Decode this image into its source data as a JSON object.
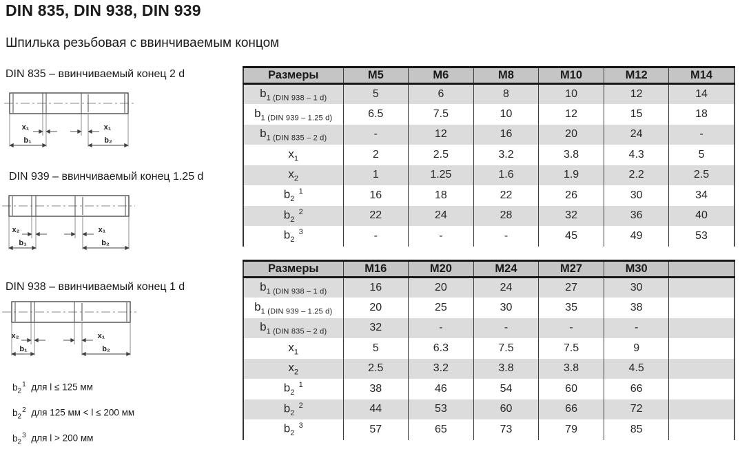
{
  "page": {
    "title": "DIN 835, DIN 938, DIN 939",
    "subtitle": "Шпилька резьбовая с ввинчиваемым концом"
  },
  "drawings": [
    {
      "caption": "DIN 835 – ввинчиваемый конец 2 d",
      "labels": {
        "left_x": "x₁",
        "right_x": "x₁",
        "left_b": "b₁",
        "right_b": "b₂"
      }
    },
    {
      "caption": "DIN 939 – ввинчиваемый конец 1.25 d",
      "labels": {
        "left_x": "x₂",
        "right_x": "x₁",
        "left_b": "b₁",
        "right_b": "b₂"
      }
    },
    {
      "caption": "DIN 938 – ввинчиваемый конец 1 d",
      "labels": {
        "left_x": "x₂",
        "right_x": "x₁",
        "left_b": "b₁",
        "right_b": "b₂"
      }
    }
  ],
  "footnotes": [
    {
      "symbol": {
        "base": "b",
        "sub": "2",
        "sup": "1"
      },
      "text": "для l ≤ 125 мм"
    },
    {
      "symbol": {
        "base": "b",
        "sub": "2",
        "sup": "2"
      },
      "text": "для 125 мм < l ≤ 200 мм"
    },
    {
      "symbol": {
        "base": "b",
        "sub": "2",
        "sup": "3"
      },
      "text": "для l > 200 мм"
    }
  ],
  "tables": [
    {
      "header": [
        "Размеры",
        "M5",
        "M6",
        "M8",
        "M10",
        "M12",
        "M14"
      ],
      "rows": [
        {
          "label": {
            "base": "b",
            "sub": "1 (DIN 938 – 1 d)"
          },
          "values": [
            "5",
            "6",
            "8",
            "10",
            "12",
            "14"
          ]
        },
        {
          "label": {
            "base": "b",
            "sub": "1 (DIN 939 – 1.25 d)"
          },
          "values": [
            "6.5",
            "7.5",
            "10",
            "12",
            "15",
            "18"
          ]
        },
        {
          "label": {
            "base": "b",
            "sub": "1 (DIN 835 – 2 d)"
          },
          "values": [
            "-",
            "12",
            "16",
            "20",
            "24",
            "-"
          ]
        },
        {
          "label": {
            "base": "x",
            "sub": "1"
          },
          "values": [
            "2",
            "2.5",
            "3.2",
            "3.8",
            "4.3",
            "5"
          ]
        },
        {
          "label": {
            "base": "x",
            "sub": "2"
          },
          "values": [
            "1",
            "1.25",
            "1.6",
            "1.9",
            "2.2",
            "2.5"
          ]
        },
        {
          "label": {
            "base": "b",
            "sub": "2",
            "sup": "1"
          },
          "values": [
            "16",
            "18",
            "22",
            "26",
            "30",
            "34"
          ]
        },
        {
          "label": {
            "base": "b",
            "sub": "2",
            "sup": "2"
          },
          "values": [
            "22",
            "24",
            "28",
            "32",
            "36",
            "40"
          ]
        },
        {
          "label": {
            "base": "b",
            "sub": "2",
            "sup": "3"
          },
          "values": [
            "-",
            "-",
            "-",
            "45",
            "49",
            "53"
          ]
        }
      ]
    },
    {
      "header": [
        "Размеры",
        "M16",
        "M20",
        "M24",
        "M27",
        "M30",
        ""
      ],
      "rows": [
        {
          "label": {
            "base": "b",
            "sub": "1 (DIN 938 – 1 d)"
          },
          "values": [
            "16",
            "20",
            "24",
            "27",
            "30",
            ""
          ]
        },
        {
          "label": {
            "base": "b",
            "sub": "1 (DIN 939 – 1.25 d)"
          },
          "values": [
            "20",
            "25",
            "30",
            "35",
            "38",
            ""
          ]
        },
        {
          "label": {
            "base": "b",
            "sub": "1 (DIN 835 – 2 d)"
          },
          "values": [
            "32",
            "-",
            "-",
            "-",
            "-",
            ""
          ]
        },
        {
          "label": {
            "base": "x",
            "sub": "1"
          },
          "values": [
            "5",
            "6.3",
            "7.5",
            "7.5",
            "9",
            ""
          ]
        },
        {
          "label": {
            "base": "x",
            "sub": "2"
          },
          "values": [
            "2.5",
            "3.2",
            "3.8",
            "3.8",
            "4.5",
            ""
          ]
        },
        {
          "label": {
            "base": "b",
            "sub": "2",
            "sup": "1"
          },
          "values": [
            "38",
            "46",
            "54",
            "60",
            "66",
            ""
          ]
        },
        {
          "label": {
            "base": "b",
            "sub": "2",
            "sup": "2"
          },
          "values": [
            "44",
            "53",
            "60",
            "66",
            "72",
            ""
          ]
        },
        {
          "label": {
            "base": "b",
            "sub": "2",
            "sup": "3"
          },
          "values": [
            "57",
            "65",
            "73",
            "79",
            "85",
            ""
          ]
        }
      ]
    }
  ],
  "colors": {
    "header_bg": "#c5c5c5",
    "stripe_bg": "#dcdcdc",
    "border_dark": "#161616",
    "grid": "#3c3c3c"
  }
}
